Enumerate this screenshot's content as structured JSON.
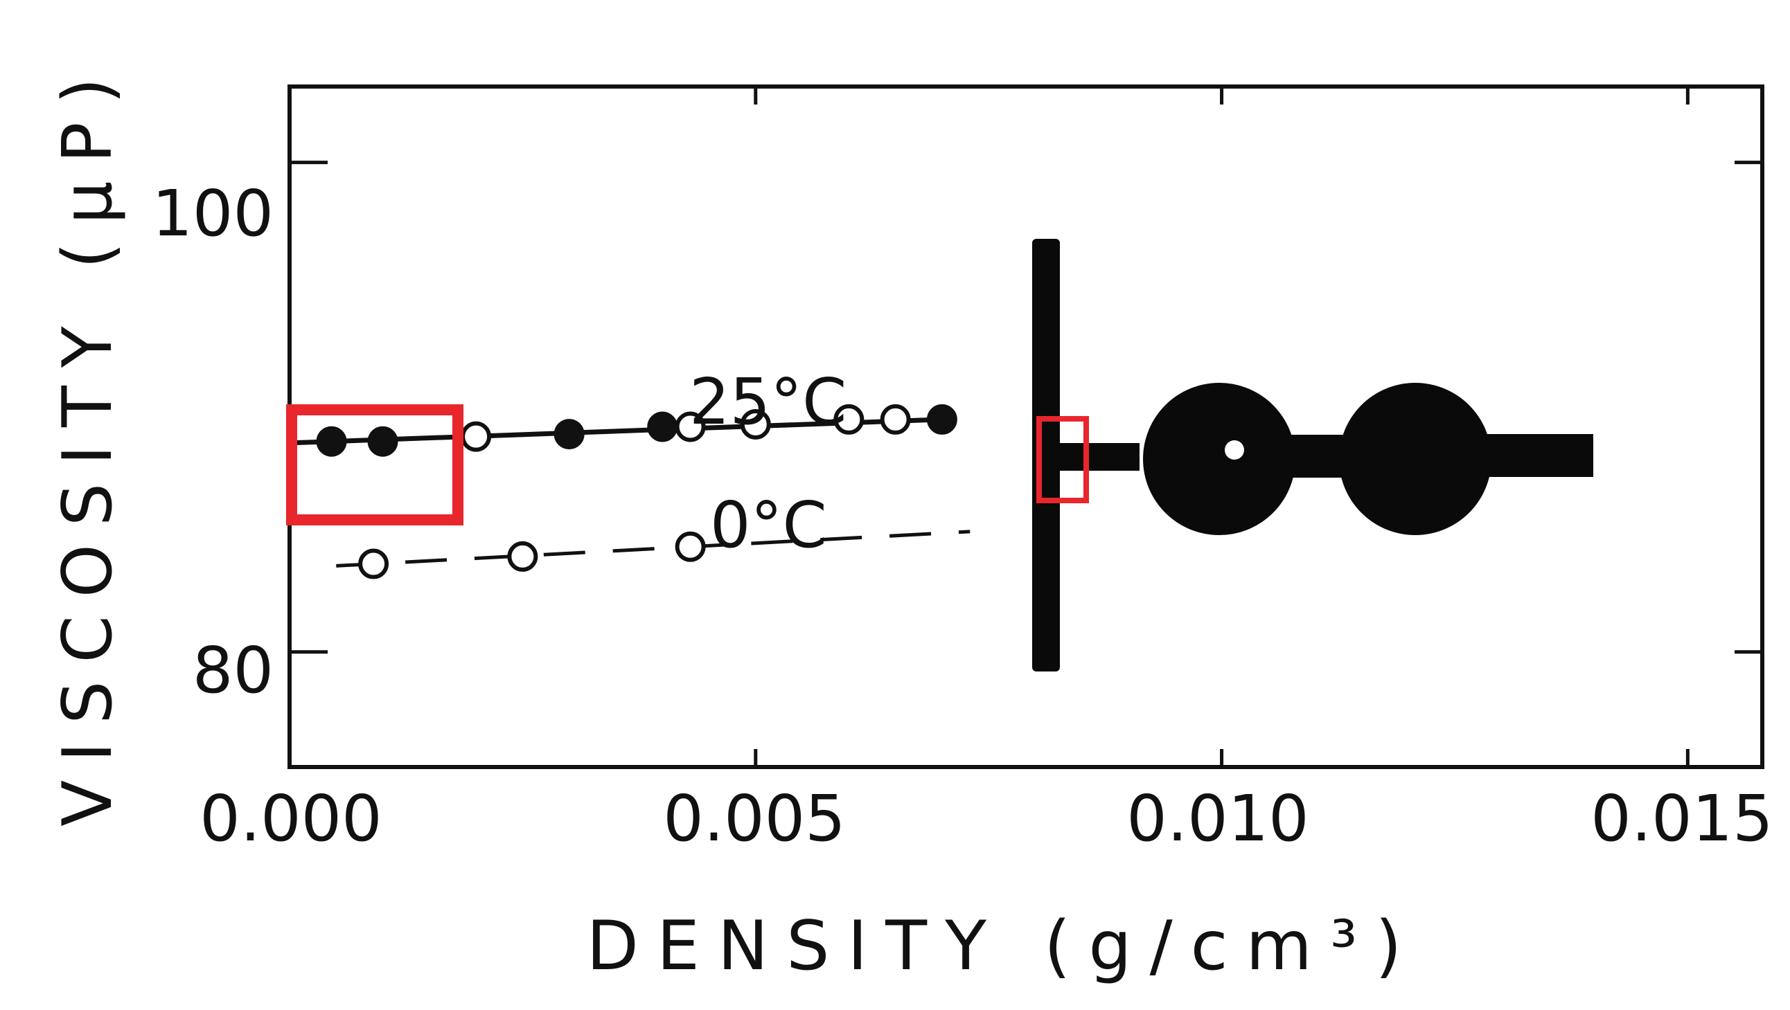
{
  "chart_data": {
    "type": "scatter",
    "xlabel": "DENSITY  (g/cm³)",
    "ylabel": "VISCOSITY  (μP)",
    "xlim": [
      0.0,
      0.0158
    ],
    "ylim": [
      75.3,
      103.1
    ],
    "x_ticks": [
      "0.000",
      "0.005",
      "0.010",
      "0.015"
    ],
    "x_tick_values": [
      0.0,
      0.005,
      0.01,
      0.015
    ],
    "y_ticks": [
      "100",
      "80"
    ],
    "y_tick_values": [
      100,
      80
    ],
    "grid": false,
    "series": [
      {
        "name": "25°C",
        "line": "solid",
        "points": [
          {
            "x": 0.00045,
            "y": 88.6,
            "marker": "filled"
          },
          {
            "x": 0.001,
            "y": 88.6,
            "marker": "filled"
          },
          {
            "x": 0.002,
            "y": 88.8,
            "marker": "open"
          },
          {
            "x": 0.003,
            "y": 88.9,
            "marker": "filled"
          },
          {
            "x": 0.004,
            "y": 89.2,
            "marker": "filled"
          },
          {
            "x": 0.0043,
            "y": 89.2,
            "marker": "open"
          },
          {
            "x": 0.005,
            "y": 89.3,
            "marker": "open"
          },
          {
            "x": 0.006,
            "y": 89.5,
            "marker": "open"
          },
          {
            "x": 0.0065,
            "y": 89.5,
            "marker": "open"
          },
          {
            "x": 0.007,
            "y": 89.5,
            "marker": "filled"
          }
        ]
      },
      {
        "name": "0°C",
        "line": "dashed",
        "points": [
          {
            "x": 0.0009,
            "y": 83.6,
            "marker": "open"
          },
          {
            "x": 0.0025,
            "y": 83.9,
            "marker": "open"
          },
          {
            "x": 0.0043,
            "y": 84.3,
            "marker": "open"
          }
        ]
      }
    ],
    "annotations": {
      "highlight_color": "#e8262c"
    }
  }
}
